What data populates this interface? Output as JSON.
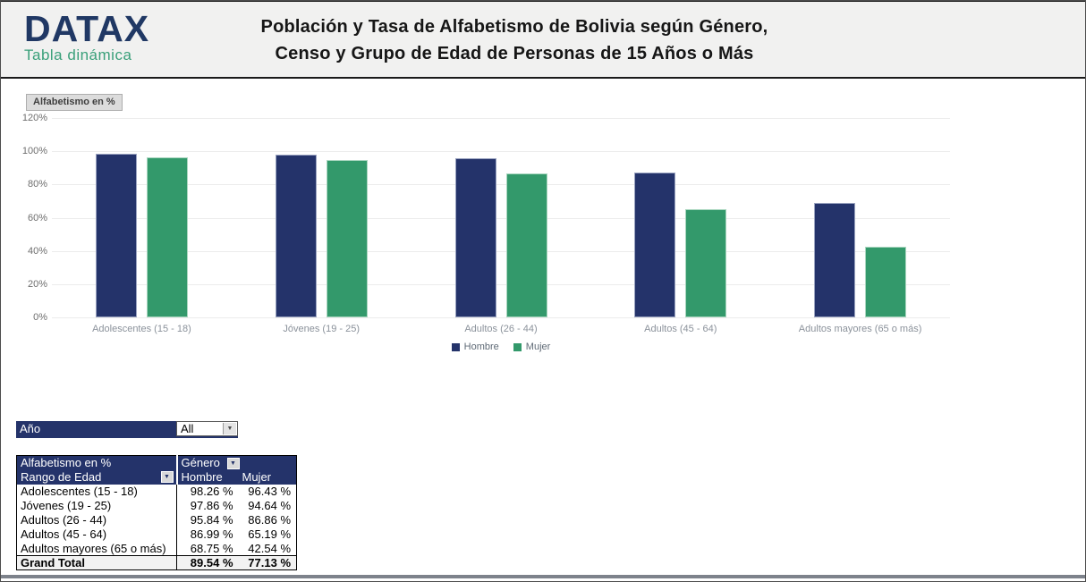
{
  "header": {
    "logo": {
      "brand": "DATAX",
      "subtitle": "Tabla dinámica"
    },
    "title_line1": "Población y Tasa de Alfabetismo de Bolivia según Género,",
    "title_line2": "Censo y Grupo de Edad de Personas de 15 Años o Más"
  },
  "chart_data": {
    "type": "bar",
    "title": "",
    "field_button": "Alfabetismo en %",
    "categories": [
      "Adolescentes (15 - 18)",
      "Jóvenes (19 - 25)",
      "Adultos (26 - 44)",
      "Adultos (45 - 64)",
      "Adultos mayores (65 o más)"
    ],
    "series": [
      {
        "name": "Hombre",
        "color": "#24336a",
        "border": "#9aa3c0",
        "values": [
          98.26,
          97.86,
          95.84,
          86.99,
          68.75
        ]
      },
      {
        "name": "Mujer",
        "color": "#33996b",
        "border": "#a9d6bf",
        "values": [
          96.43,
          94.64,
          86.86,
          65.19,
          42.54
        ]
      }
    ],
    "xlabel": "",
    "ylabel": "",
    "ylim": [
      0,
      120
    ],
    "ytick_step": 20,
    "ytick_labels": [
      "0%",
      "20%",
      "40%",
      "60%",
      "80%",
      "100%",
      "120%"
    ],
    "grid": true,
    "legend_position": "bottom"
  },
  "filter": {
    "label": "Año",
    "value": "All"
  },
  "pivot": {
    "measure_label": "Alfabetismo en %",
    "column_field_label": "Género",
    "row_field_label": "Rango de Edad",
    "columns": [
      "Hombre",
      "Mujer"
    ],
    "rows": [
      {
        "label": "Adolescentes (15 - 18)",
        "hombre": "98.26 %",
        "mujer": "96.43 %"
      },
      {
        "label": "Jóvenes (19 - 25)",
        "hombre": "97.86 %",
        "mujer": "94.64 %"
      },
      {
        "label": "Adultos (26 - 44)",
        "hombre": "95.84 %",
        "mujer": "86.86 %"
      },
      {
        "label": "Adultos (45 - 64)",
        "hombre": "86.99 %",
        "mujer": "65.19 %"
      },
      {
        "label": "Adultos mayores (65 o más)",
        "hombre": "68.75 %",
        "mujer": "42.54 %"
      }
    ],
    "grand_total": {
      "label": "Grand Total",
      "hombre": "89.54 %",
      "mujer": "77.13 %"
    }
  },
  "colors": {
    "navy": "#24336a",
    "green": "#33996b",
    "header_bg": "#f1f1f0"
  }
}
